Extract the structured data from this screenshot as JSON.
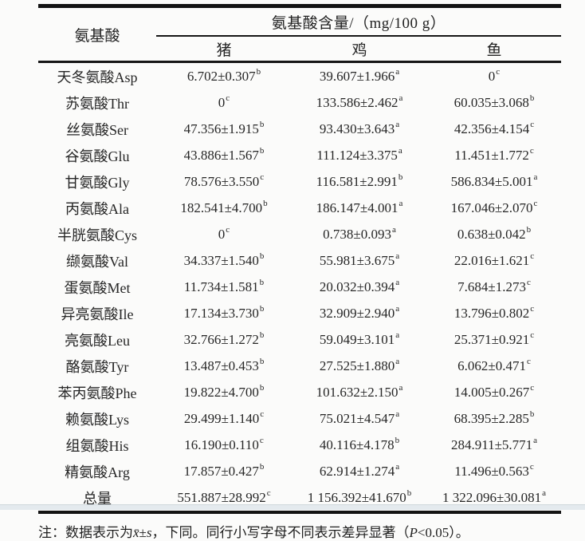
{
  "table": {
    "col1_header": "氨基酸",
    "group_header": "氨基酸含量/（mg/100 g）",
    "columns": [
      "猪",
      "鸡",
      "鱼"
    ],
    "rows": [
      {
        "label": "天冬氨酸Asp",
        "cells": [
          {
            "v": "6.702±0.307",
            "s": "b"
          },
          {
            "v": "39.607±1.966",
            "s": "a"
          },
          {
            "v": "0",
            "s": "c"
          }
        ]
      },
      {
        "label": "苏氨酸Thr",
        "cells": [
          {
            "v": "0",
            "s": "c"
          },
          {
            "v": "133.586±2.462",
            "s": "a"
          },
          {
            "v": "60.035±3.068",
            "s": "b"
          }
        ]
      },
      {
        "label": "丝氨酸Ser",
        "cells": [
          {
            "v": "47.356±1.915",
            "s": "b"
          },
          {
            "v": "93.430±3.643",
            "s": "a"
          },
          {
            "v": "42.356±4.154",
            "s": "c"
          }
        ]
      },
      {
        "label": "谷氨酸Glu",
        "cells": [
          {
            "v": "43.886±1.567",
            "s": "b"
          },
          {
            "v": "111.124±3.375",
            "s": "a"
          },
          {
            "v": "11.451±1.772",
            "s": "c"
          }
        ]
      },
      {
        "label": "甘氨酸Gly",
        "cells": [
          {
            "v": "78.576±3.550",
            "s": "c"
          },
          {
            "v": "116.581±2.991",
            "s": "b"
          },
          {
            "v": "586.834±5.001",
            "s": "a"
          }
        ]
      },
      {
        "label": "丙氨酸Ala",
        "cells": [
          {
            "v": "182.541±4.700",
            "s": "b"
          },
          {
            "v": "186.147±4.001",
            "s": "a"
          },
          {
            "v": "167.046±2.070",
            "s": "c"
          }
        ]
      },
      {
        "label": "半胱氨酸Cys",
        "cells": [
          {
            "v": "0",
            "s": "c"
          },
          {
            "v": "0.738±0.093",
            "s": "a"
          },
          {
            "v": "0.638±0.042",
            "s": "b"
          }
        ]
      },
      {
        "label": "缬氨酸Val",
        "cells": [
          {
            "v": "34.337±1.540",
            "s": "b"
          },
          {
            "v": "55.981±3.675",
            "s": "a"
          },
          {
            "v": "22.016±1.621",
            "s": "c"
          }
        ]
      },
      {
        "label": "蛋氨酸Met",
        "cells": [
          {
            "v": "11.734±1.581",
            "s": "b"
          },
          {
            "v": "20.032±0.394",
            "s": "a"
          },
          {
            "v": "7.684±1.273",
            "s": "c"
          }
        ]
      },
      {
        "label": "异亮氨酸Ile",
        "cells": [
          {
            "v": "17.134±3.730",
            "s": "b"
          },
          {
            "v": "32.909±2.940",
            "s": "a"
          },
          {
            "v": "13.796±0.802",
            "s": "c"
          }
        ]
      },
      {
        "label": "亮氨酸Leu",
        "cells": [
          {
            "v": "32.766±1.272",
            "s": "b"
          },
          {
            "v": "59.049±3.101",
            "s": "a"
          },
          {
            "v": "25.371±0.921",
            "s": "c"
          }
        ]
      },
      {
        "label": "酪氨酸Tyr",
        "cells": [
          {
            "v": "13.487±0.453",
            "s": "b"
          },
          {
            "v": "27.525±1.880",
            "s": "a"
          },
          {
            "v": "6.062±0.471",
            "s": "c"
          }
        ]
      },
      {
        "label": "苯丙氨酸Phe",
        "cells": [
          {
            "v": "19.822±4.700",
            "s": "b"
          },
          {
            "v": "101.632±2.150",
            "s": "a"
          },
          {
            "v": "14.005±0.267",
            "s": "c"
          }
        ]
      },
      {
        "label": "赖氨酸Lys",
        "cells": [
          {
            "v": "29.499±1.140",
            "s": "c"
          },
          {
            "v": "75.021±4.547",
            "s": "a"
          },
          {
            "v": "68.395±2.285",
            "s": "b"
          }
        ]
      },
      {
        "label": "组氨酸His",
        "cells": [
          {
            "v": "16.190±0.110",
            "s": "c"
          },
          {
            "v": "40.116±4.178",
            "s": "b"
          },
          {
            "v": "284.911±5.771",
            "s": "a"
          }
        ]
      },
      {
        "label": "精氨酸Arg",
        "cells": [
          {
            "v": "17.857±0.427",
            "s": "b"
          },
          {
            "v": "62.914±1.274",
            "s": "a"
          },
          {
            "v": "11.496±0.563",
            "s": "c"
          }
        ]
      },
      {
        "label": "总量",
        "cells": [
          {
            "v": "551.887±28.992",
            "s": "c"
          },
          {
            "v": "1 156.392±41.670",
            "s": "b"
          },
          {
            "v": "1 322.096±30.081",
            "s": "a"
          }
        ]
      }
    ]
  },
  "note": {
    "prefix": "注：数据表示为",
    "stat_mean": "x̄",
    "plus_minus": "±",
    "stat_s": "s",
    "middle": "，下同。同行小写字母不同表示差异显著（",
    "p_symbol": "P",
    "p_rest": "<0.05",
    "suffix": "）。"
  }
}
